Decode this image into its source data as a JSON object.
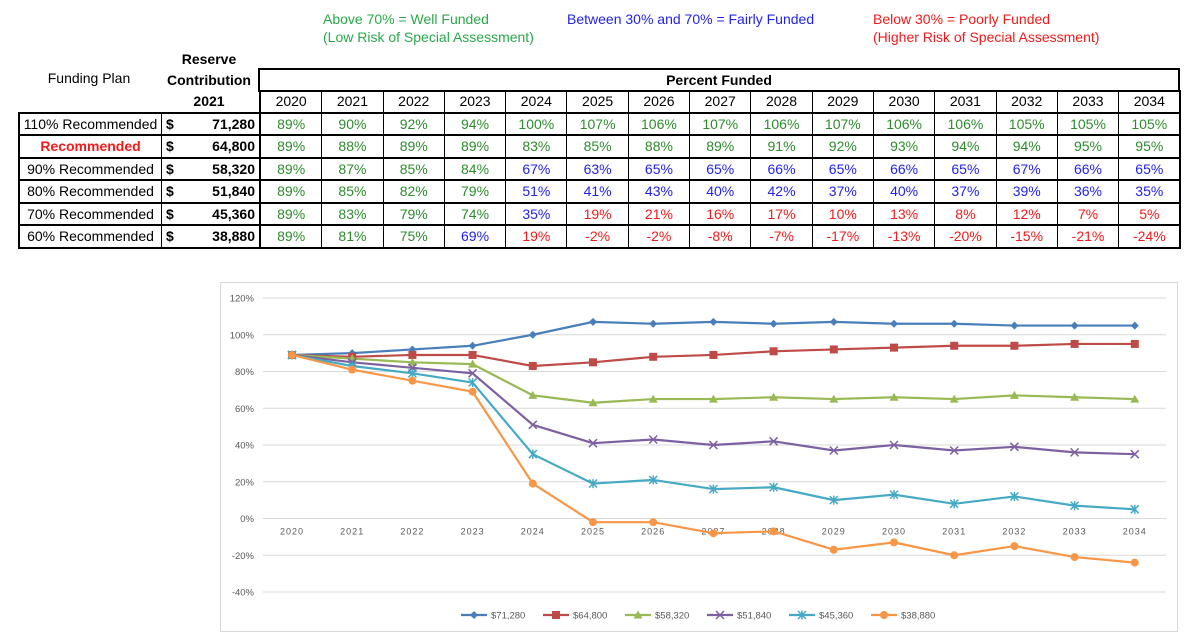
{
  "notes": {
    "well": [
      "Above 70% = Well Funded",
      "(Low Risk of Special Assessment)"
    ],
    "fair": [
      "Between 30% and 70% = Fairly Funded"
    ],
    "poor": [
      "Below 30% = Poorly Funded",
      "(Higher Risk of Special Assessment)"
    ]
  },
  "colors": {
    "well": "#2aa84a",
    "fair": "#2323e8",
    "poor": "#ee1c1c",
    "cell_well": "#2e8b2e"
  },
  "table": {
    "col_plan": "Funding Plan",
    "col_contrib": [
      "Reserve",
      "Contribution",
      "2021"
    ],
    "percent_funded": "Percent Funded",
    "years": [
      "2020",
      "2021",
      "2022",
      "2023",
      "2024",
      "2025",
      "2026",
      "2027",
      "2028",
      "2029",
      "2030",
      "2031",
      "2032",
      "2033",
      "2034"
    ],
    "rows": [
      {
        "plan": "110% Recommended",
        "dollar": "$",
        "amount": "71,280",
        "values": [
          89,
          90,
          92,
          94,
          100,
          107,
          106,
          107,
          106,
          107,
          106,
          106,
          105,
          105,
          105
        ]
      },
      {
        "plan": "Recommended",
        "dollar": "$",
        "amount": "64,800",
        "highlight": true,
        "values": [
          89,
          88,
          89,
          89,
          83,
          85,
          88,
          89,
          91,
          92,
          93,
          94,
          94,
          95,
          95
        ]
      },
      {
        "plan": "90% Recommended",
        "dollar": "$",
        "amount": "58,320",
        "values": [
          89,
          87,
          85,
          84,
          67,
          63,
          65,
          65,
          66,
          65,
          66,
          65,
          67,
          66,
          65
        ]
      },
      {
        "plan": "80% Recommended",
        "dollar": "$",
        "amount": "51,840",
        "values": [
          89,
          85,
          82,
          79,
          51,
          41,
          43,
          40,
          42,
          37,
          40,
          37,
          39,
          36,
          35
        ]
      },
      {
        "plan": "70% Recommended",
        "dollar": "$",
        "amount": "45,360",
        "values": [
          89,
          83,
          79,
          74,
          35,
          19,
          21,
          16,
          17,
          10,
          13,
          8,
          12,
          7,
          5
        ]
      },
      {
        "plan": "60% Recommended",
        "dollar": "$",
        "amount": "38,880",
        "values": [
          89,
          81,
          75,
          69,
          19,
          -2,
          -2,
          -8,
          -7,
          -17,
          -13,
          -20,
          -15,
          -21,
          -24
        ]
      }
    ]
  },
  "chart_data": {
    "type": "line",
    "x": [
      "2020",
      "2021",
      "2022",
      "2023",
      "2024",
      "2025",
      "2026",
      "2027",
      "2028",
      "2029",
      "2030",
      "2031",
      "2032",
      "2033",
      "2034"
    ],
    "ylim": [
      -40,
      120
    ],
    "yticks": [
      "120%",
      "100%",
      "80%",
      "60%",
      "40%",
      "20%",
      "0%",
      "-20%",
      "-40%"
    ],
    "grid": true,
    "legend": "bottom",
    "series": [
      {
        "name": "$71,280",
        "color": "#4a7ebb",
        "marker": "diamond",
        "values": [
          89,
          90,
          92,
          94,
          100,
          107,
          106,
          107,
          106,
          107,
          106,
          106,
          105,
          105,
          105
        ]
      },
      {
        "name": "$64,800",
        "color": "#be4b48",
        "marker": "square",
        "values": [
          89,
          88,
          89,
          89,
          83,
          85,
          88,
          89,
          91,
          92,
          93,
          94,
          94,
          95,
          95
        ]
      },
      {
        "name": "$58,320",
        "color": "#98b954",
        "marker": "triangle",
        "values": [
          89,
          87,
          85,
          84,
          67,
          63,
          65,
          65,
          66,
          65,
          66,
          65,
          67,
          66,
          65
        ]
      },
      {
        "name": "$51,840",
        "color": "#7d60a0",
        "marker": "x",
        "values": [
          89,
          85,
          82,
          79,
          51,
          41,
          43,
          40,
          42,
          37,
          40,
          37,
          39,
          36,
          35
        ]
      },
      {
        "name": "$45,360",
        "color": "#46aac5",
        "marker": "asterisk",
        "values": [
          89,
          83,
          79,
          74,
          35,
          19,
          21,
          16,
          17,
          10,
          13,
          8,
          12,
          7,
          5
        ]
      },
      {
        "name": "$38,880",
        "color": "#f79646",
        "marker": "circle",
        "values": [
          89,
          81,
          75,
          69,
          19,
          -2,
          -2,
          -8,
          -7,
          -17,
          -13,
          -20,
          -15,
          -21,
          -24
        ]
      }
    ]
  }
}
